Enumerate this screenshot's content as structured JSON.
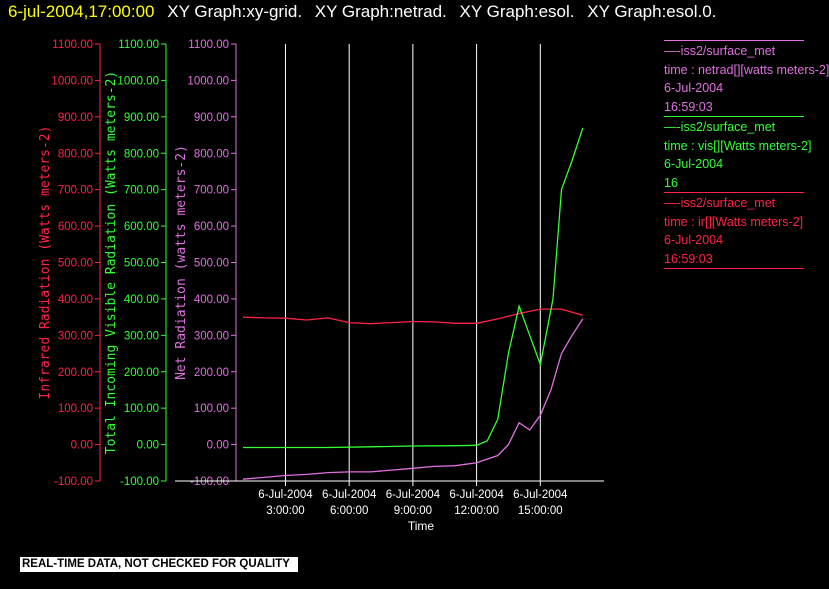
{
  "header": {
    "timestamp": "6-jul-2004,17:00:00",
    "titles": [
      "XY Graph:xy-grid.",
      "XY Graph:netrad.",
      "XY Graph:esol.",
      "XY Graph:esol.0."
    ]
  },
  "legend": [
    {
      "name": "—-iss2/surface_met",
      "var": "time : netrad[][watts meters-2]",
      "date": "6-Jul-2004",
      "time": "16:59:03",
      "color": "#e070e0"
    },
    {
      "name": "—-iss2/surface_met",
      "var": "time : vis[][Watts meters-2]",
      "date": "6-Jul-2004",
      "time": "16",
      "color": "#33ff33"
    },
    {
      "name": "—-iss2/surface_met",
      "var": "time : ir[][Watts meters-2]",
      "date": "6-Jul-2004",
      "time": "16:59:03",
      "color": "#ff2244"
    }
  ],
  "disclaimer": "REAL-TIME DATA, NOT CHECKED FOR QUALITY",
  "chart_data": {
    "type": "line",
    "xlabel": "Time",
    "xlim": [
      1,
      18
    ],
    "ylim": [
      -100,
      1100
    ],
    "grid": "vertical",
    "ytick_labels": [
      "-100.00",
      "0.00",
      "100.00",
      "200.00",
      "300.00",
      "400.00",
      "500.00",
      "600.00",
      "700.00",
      "800.00",
      "900.00",
      "1000.00",
      "1100.00"
    ],
    "x_ticks": [
      {
        "x": 3,
        "date": "6-Jul-2004",
        "time": "3:00:00"
      },
      {
        "x": 6,
        "date": "6-Jul-2004",
        "time": "6:00:00"
      },
      {
        "x": 9,
        "date": "6-Jul-2004",
        "time": "9:00:00"
      },
      {
        "x": 12,
        "date": "6-Jul-2004",
        "time": "12:00:00"
      },
      {
        "x": 15,
        "date": "6-Jul-2004",
        "time": "15:00:00"
      }
    ],
    "axes": [
      {
        "label": "Infrared Radiation (Watts meters-2)",
        "color": "#ff2244"
      },
      {
        "label": "Total Incoming Visible Radiation (Watts meters-2)",
        "color": "#33ff33"
      },
      {
        "label": "Net Radiation (watts meters-2)",
        "color": "#e070e0"
      }
    ],
    "series": [
      {
        "color": "#ff2244",
        "x": [
          1,
          2,
          3,
          4,
          5,
          6,
          7,
          8,
          9,
          10,
          11,
          12,
          13,
          14,
          15,
          16,
          17
        ],
        "y": [
          350,
          348,
          347,
          342,
          348,
          335,
          332,
          335,
          338,
          337,
          333,
          333,
          345,
          360,
          372,
          372,
          355
        ]
      },
      {
        "color": "#33ff33",
        "x": [
          1,
          3,
          5,
          7,
          9,
          11,
          12,
          12.5,
          13,
          13.5,
          14,
          14.5,
          15,
          15.3,
          15.6,
          16,
          16.5,
          17
        ],
        "y": [
          -8,
          -8,
          -8,
          -6,
          -4,
          -3,
          -2,
          10,
          70,
          250,
          380,
          300,
          220,
          310,
          400,
          700,
          780,
          870
        ]
      },
      {
        "color": "#e070e0",
        "x": [
          1,
          2,
          3,
          4,
          5,
          6,
          7,
          8,
          9,
          10,
          11,
          12,
          13,
          13.5,
          14,
          14.5,
          15,
          15.5,
          16,
          16.5,
          17
        ],
        "y": [
          -95,
          -90,
          -85,
          -82,
          -77,
          -75,
          -75,
          -70,
          -65,
          -60,
          -58,
          -50,
          -30,
          0,
          60,
          40,
          80,
          150,
          250,
          300,
          345
        ]
      }
    ]
  }
}
